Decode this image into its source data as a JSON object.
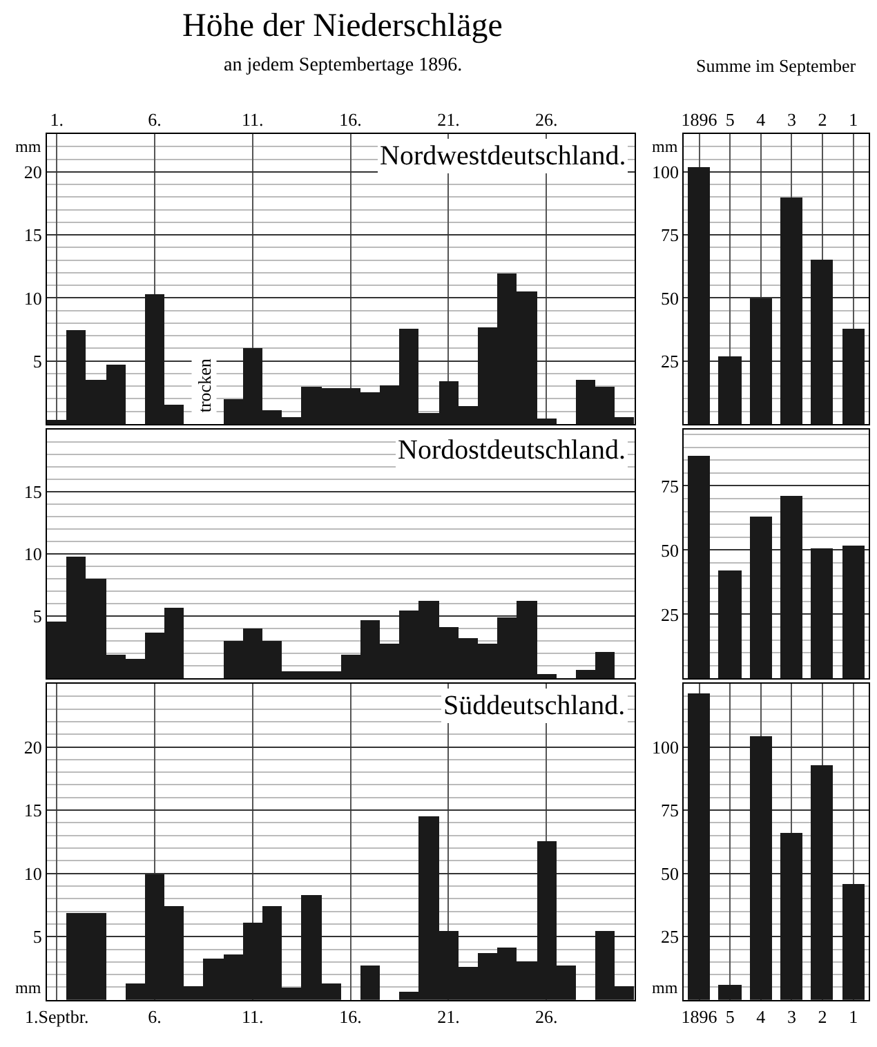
{
  "chart_data": [
    {
      "type": "bar",
      "title": "Höhe der Niederschläge",
      "subtitle": "an jedem Septembertage 1896.",
      "ylabel": "mm",
      "categories": [
        "1.",
        null,
        null,
        null,
        null,
        "6.",
        null,
        null,
        null,
        null,
        "11.",
        null,
        null,
        null,
        null,
        "16.",
        null,
        null,
        null,
        null,
        "21.",
        null,
        null,
        null,
        null,
        "26.",
        null,
        null,
        null,
        null
      ],
      "values": [
        0.3,
        7.5,
        3.5,
        4.7,
        0,
        10.3,
        1.5,
        0,
        0,
        2.0,
        6.0,
        1.1,
        0.5,
        2.9,
        2.8,
        2.8,
        2.5,
        3.1,
        7.6,
        0.9,
        3.4,
        1.4,
        7.7,
        11.9,
        10.5,
        0.4,
        0,
        3.5,
        2.9,
        0.5
      ],
      "color": "#1a1a1a",
      "ylim": [
        0,
        23
      ],
      "yticks": [
        5,
        10,
        15,
        20
      ],
      "grid": true,
      "annotations": [
        "Nordwestdeutschland.",
        "trocken"
      ]
    },
    {
      "type": "bar",
      "title": "Summe im September",
      "ylabel": "mm",
      "categories": [
        "1896",
        "5",
        "4",
        "3",
        "2",
        "1"
      ],
      "values": [
        102,
        27,
        50,
        90,
        65,
        38
      ],
      "color": "#1a1a1a",
      "ylim": [
        0,
        115
      ],
      "yticks": [
        25,
        50,
        75,
        100
      ],
      "grid": true
    },
    {
      "type": "bar",
      "categories": [
        null,
        null,
        null,
        null,
        null,
        null,
        null,
        null,
        null,
        null,
        null,
        null,
        null,
        null,
        null,
        null,
        null,
        null,
        null,
        null,
        null,
        null,
        null,
        null,
        null,
        null,
        null,
        null,
        null,
        null
      ],
      "values": [
        4.6,
        9.8,
        8.0,
        1.9,
        1.6,
        3.7,
        5.7,
        0,
        0,
        3.0,
        4.0,
        3.0,
        0.6,
        0.6,
        0.6,
        1.9,
        4.7,
        2.8,
        5.5,
        6.2,
        4.1,
        3.3,
        2.8,
        4.9,
        6.3,
        0.4,
        0,
        0.7,
        2.2,
        0
      ],
      "color": "#1a1a1a",
      "ylim": [
        0,
        20
      ],
      "yticks": [
        5,
        10,
        15
      ],
      "grid": true,
      "tick_labels": "y",
      "annotations": [
        "Nordostdeutschland."
      ]
    },
    {
      "type": "bar",
      "categories": [
        "1896",
        "5",
        "4",
        "3",
        "2",
        "1"
      ],
      "values": [
        87,
        42,
        63,
        71,
        51,
        52
      ],
      "color": "#1a1a1a",
      "ylim": [
        0,
        97
      ],
      "yticks": [
        25,
        50,
        75
      ],
      "grid": true,
      "tick_labels": "y"
    },
    {
      "type": "bar",
      "ylabel": "mm",
      "categories": [
        "1.Septbr.",
        null,
        null,
        null,
        null,
        "6.",
        null,
        null,
        null,
        null,
        "11.",
        null,
        null,
        null,
        null,
        "16.",
        null,
        null,
        null,
        null,
        "21.",
        null,
        null,
        null,
        null,
        "26.",
        null,
        null,
        null,
        null
      ],
      "values": [
        0,
        6.9,
        6.9,
        0,
        1.3,
        9.9,
        7.4,
        1.1,
        3.3,
        3.6,
        6.1,
        7.4,
        1.0,
        8.3,
        1.3,
        0,
        2.7,
        0,
        0.7,
        14.5,
        5.4,
        2.6,
        3.7,
        4.1,
        3.1,
        12.5,
        2.7,
        0,
        5.5,
        1.1
      ],
      "color": "#1a1a1a",
      "ylim": [
        0,
        25
      ],
      "yticks": [
        5,
        10,
        15,
        20
      ],
      "grid": true,
      "annotations": [
        "Süddeutschland."
      ]
    },
    {
      "type": "bar",
      "ylabel": "mm",
      "categories": [
        "1896",
        "5",
        "4",
        "3",
        "2",
        "1"
      ],
      "values": [
        121,
        6,
        104,
        66,
        93,
        46
      ],
      "color": "#1a1a1a",
      "ylim": [
        0,
        125
      ],
      "yticks": [
        25,
        50,
        75,
        100
      ],
      "grid": true
    }
  ]
}
